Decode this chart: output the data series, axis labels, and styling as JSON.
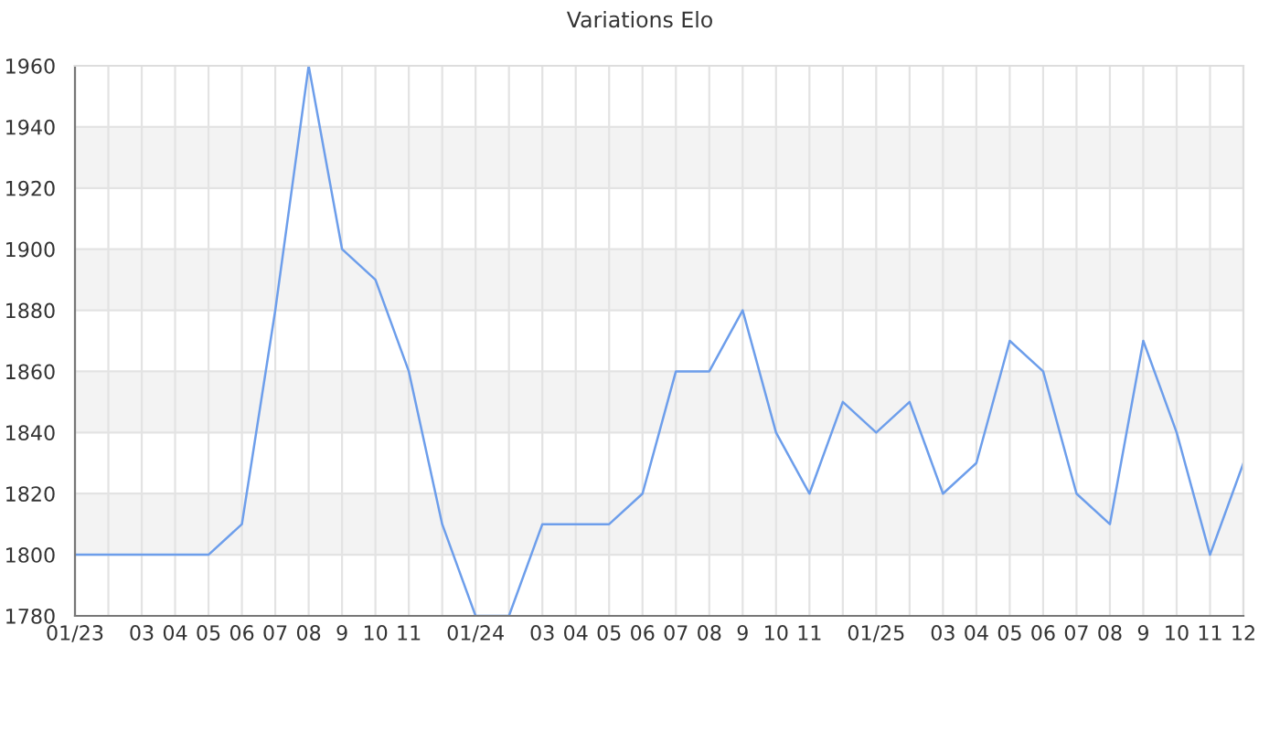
{
  "chart_data": {
    "type": "line",
    "title": "Variations Elo",
    "categories": [
      "01/23",
      null,
      "03",
      "04",
      "05",
      "06",
      "07",
      "08",
      "9",
      "10",
      "11",
      null,
      "01/24",
      null,
      "03",
      "04",
      "05",
      "06",
      "07",
      "08",
      "9",
      "10",
      "11",
      null,
      "01/25",
      null,
      "03",
      "04",
      "05",
      "06",
      "07",
      "08",
      "9",
      "10",
      "11",
      "12"
    ],
    "series": [
      {
        "color": "#6d9eeb",
        "values": [
          1800,
          1800,
          1800,
          1800,
          1800,
          1810,
          1880,
          1960,
          1900,
          1890,
          1860,
          1810,
          1780,
          1780,
          1810,
          1810,
          1810,
          1820,
          1860,
          1860,
          1880,
          1840,
          1820,
          1850,
          1840,
          1850,
          1820,
          1830,
          1870,
          1860,
          1820,
          1810,
          1870,
          1840,
          1800,
          1830
        ]
      }
    ],
    "ylim": [
      1780,
      1960
    ],
    "yticks": [
      1780,
      1800,
      1820,
      1840,
      1860,
      1880,
      1900,
      1920,
      1940,
      1960
    ],
    "grid": true,
    "marker": "none",
    "line_style": "solid",
    "legend": false
  }
}
